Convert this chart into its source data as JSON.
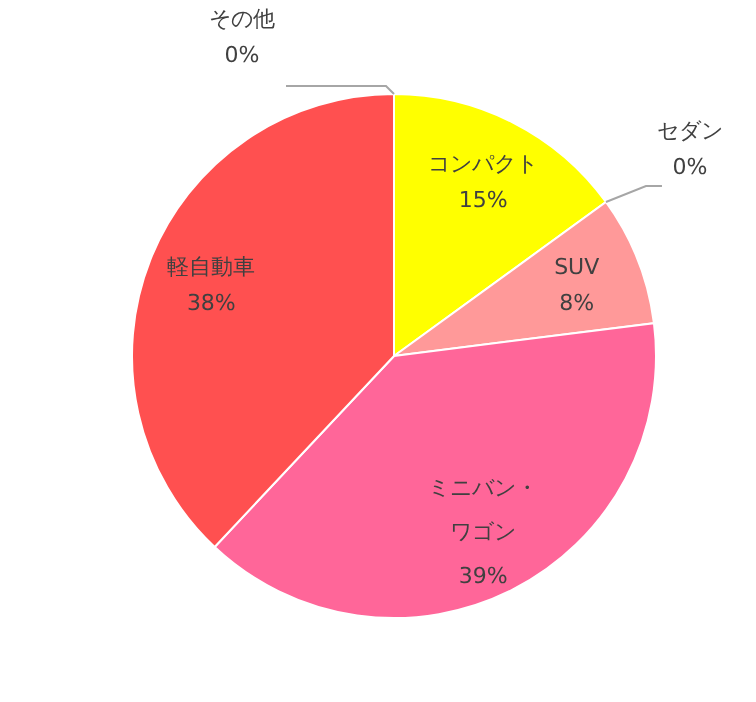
{
  "chart_data": {
    "type": "pie",
    "categories": [
      "コンパクト",
      "セダン",
      "SUV",
      "ミニバン・ワゴン",
      "軽自動車",
      "その他"
    ],
    "values": [
      15,
      0,
      8,
      39,
      38,
      0
    ],
    "colors": [
      "#ffff00",
      null,
      "#ff9999",
      "#ff6699",
      "#ff5050",
      null
    ],
    "value_labels": [
      "15%",
      "0%",
      "8%",
      "39%",
      "38%",
      "0%"
    ]
  }
}
